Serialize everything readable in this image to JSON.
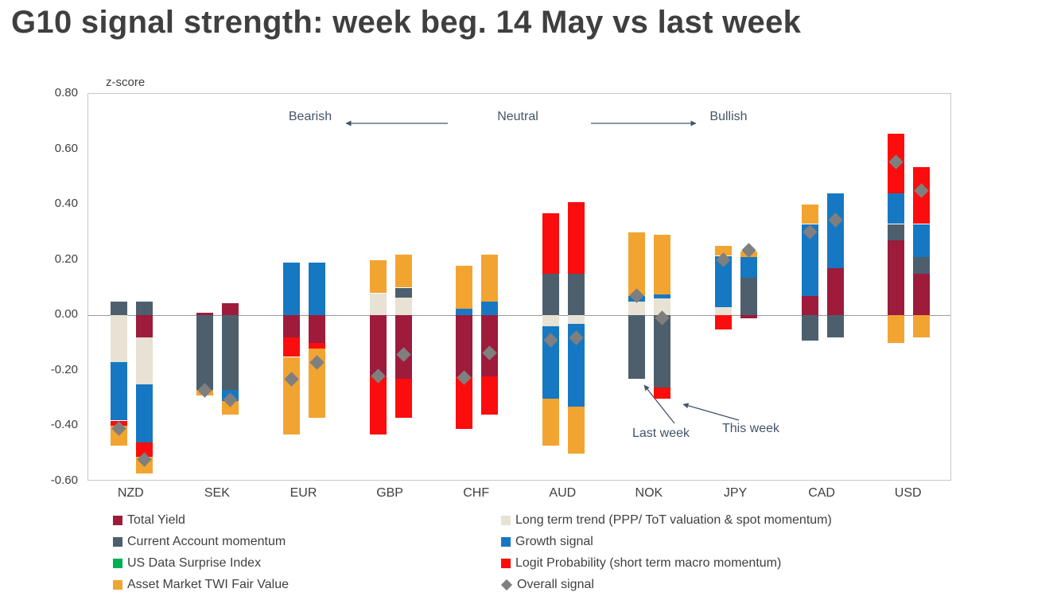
{
  "title": "G10 signal strength: week beg. 14 May vs last week",
  "colors": {
    "title_text": "#3F3F3F",
    "axis_text": "#404040",
    "annotation_text": "#44546A",
    "plot_border": "#C6C6C6",
    "zero_line": "#9A9A9A"
  },
  "chart_data": {
    "type": "bar",
    "stacked": true,
    "title": "G10 signal strength: week beg. 14 May vs last week",
    "ylabel": "z-score",
    "xlabel": "",
    "ylim": [
      -0.6,
      0.8
    ],
    "yticks": [
      "0.80",
      "0.60",
      "0.40",
      "0.20",
      "0.00",
      "-0.20",
      "-0.40",
      "-0.60"
    ],
    "grid": "off",
    "legend_position": "bottom-two-columns",
    "categories": [
      "NZD",
      "SEK",
      "EUR",
      "GBP",
      "CHF",
      "AUD",
      "NOK",
      "JPY",
      "CAD",
      "USD"
    ],
    "bar_pairs": [
      "last_week",
      "this_week"
    ],
    "components": {
      "total_yield": {
        "label": "Total Yield",
        "color": "#9E1B3B"
      },
      "long_term_trend": {
        "label": "Long term trend (PPP/ ToT valuation & spot momentum)",
        "color": "#E8E2D4"
      },
      "current_account": {
        "label": "Current Account momentum",
        "color": "#4D5F6D"
      },
      "growth": {
        "label": "Growth signal",
        "color": "#1678C2"
      },
      "us_surprise": {
        "label": "US Data Surprise Index",
        "color": "#00B050"
      },
      "logit": {
        "label": "Logit Probability (short term macro momentum)",
        "color": "#FB0D0D"
      },
      "twi": {
        "label": "Asset Market TWI Fair Value",
        "color": "#F2A431"
      },
      "overall": {
        "label": "Overall signal",
        "color": "#808080",
        "marker": "diamond"
      }
    },
    "legend_columns": [
      [
        "total_yield",
        "current_account",
        "us_surprise",
        "twi"
      ],
      [
        "long_term_trend",
        "growth",
        "logit",
        "overall"
      ]
    ],
    "groups": [
      {
        "currency": "NZD",
        "last_week": {
          "segments": [
            [
              "current_account",
              0.05
            ],
            [
              "long_term_trend",
              -0.17
            ],
            [
              "growth",
              -0.21
            ],
            [
              "logit",
              -0.02
            ],
            [
              "twi",
              -0.07
            ]
          ],
          "overall": -0.41
        },
        "this_week": {
          "segments": [
            [
              "current_account",
              0.05
            ],
            [
              "total_yield",
              -0.08
            ],
            [
              "long_term_trend",
              -0.17
            ],
            [
              "growth",
              -0.21
            ],
            [
              "logit",
              -0.05
            ],
            [
              "twi",
              -0.06
            ]
          ],
          "overall": -0.52
        }
      },
      {
        "currency": "SEK",
        "last_week": {
          "segments": [
            [
              "total_yield",
              0.01
            ],
            [
              "current_account",
              -0.27
            ],
            [
              "twi",
              -0.02
            ]
          ],
          "overall": -0.27
        },
        "this_week": {
          "segments": [
            [
              "total_yield",
              0.045
            ],
            [
              "current_account",
              -0.27
            ],
            [
              "growth",
              -0.04
            ],
            [
              "twi",
              -0.05
            ]
          ],
          "overall": -0.305
        }
      },
      {
        "currency": "EUR",
        "last_week": {
          "segments": [
            [
              "growth",
              0.19
            ],
            [
              "total_yield",
              -0.08
            ],
            [
              "logit",
              -0.07
            ],
            [
              "twi",
              -0.28
            ]
          ],
          "overall": -0.23
        },
        "this_week": {
          "segments": [
            [
              "growth",
              0.19
            ],
            [
              "total_yield",
              -0.1
            ],
            [
              "logit",
              -0.02
            ],
            [
              "twi",
              -0.25
            ]
          ],
          "overall": -0.17
        }
      },
      {
        "currency": "GBP",
        "last_week": {
          "segments": [
            [
              "long_term_trend",
              0.08
            ],
            [
              "twi",
              0.12
            ],
            [
              "total_yield",
              -0.22
            ],
            [
              "logit",
              -0.21
            ]
          ],
          "overall": -0.22
        },
        "this_week": {
          "segments": [
            [
              "long_term_trend",
              0.065
            ],
            [
              "current_account",
              0.035
            ],
            [
              "twi",
              0.12
            ],
            [
              "total_yield",
              -0.23
            ],
            [
              "logit",
              -0.14
            ]
          ],
          "overall": -0.14
        }
      },
      {
        "currency": "CHF",
        "last_week": {
          "segments": [
            [
              "growth",
              0.025
            ],
            [
              "twi",
              0.155
            ],
            [
              "total_yield",
              -0.22
            ],
            [
              "logit",
              -0.19
            ]
          ],
          "overall": -0.225
        },
        "this_week": {
          "segments": [
            [
              "growth",
              0.05
            ],
            [
              "twi",
              0.17
            ],
            [
              "total_yield",
              -0.22
            ],
            [
              "logit",
              -0.14
            ]
          ],
          "overall": -0.135
        }
      },
      {
        "currency": "AUD",
        "last_week": {
          "segments": [
            [
              "current_account",
              0.15
            ],
            [
              "logit",
              0.22
            ],
            [
              "long_term_trend",
              -0.04
            ],
            [
              "growth",
              -0.26
            ],
            [
              "twi",
              -0.17
            ]
          ],
          "overall": -0.09
        },
        "this_week": {
          "segments": [
            [
              "current_account",
              0.15
            ],
            [
              "logit",
              0.26
            ],
            [
              "long_term_trend",
              -0.03
            ],
            [
              "growth",
              -0.3
            ],
            [
              "twi",
              -0.17
            ]
          ],
          "overall": -0.08
        }
      },
      {
        "currency": "NOK",
        "last_week": {
          "segments": [
            [
              "long_term_trend",
              0.05
            ],
            [
              "growth",
              0.02
            ],
            [
              "twi",
              0.23
            ],
            [
              "current_account",
              -0.23
            ]
          ],
          "overall": 0.07
        },
        "this_week": {
          "segments": [
            [
              "long_term_trend",
              0.06
            ],
            [
              "growth",
              0.015
            ],
            [
              "twi",
              0.215
            ],
            [
              "current_account",
              -0.26
            ],
            [
              "logit",
              -0.04
            ]
          ],
          "overall": -0.01
        }
      },
      {
        "currency": "JPY",
        "last_week": {
          "segments": [
            [
              "long_term_trend",
              0.03
            ],
            [
              "growth",
              0.185
            ],
            [
              "twi",
              0.035
            ],
            [
              "logit",
              -0.05
            ]
          ],
          "overall": 0.2
        },
        "this_week": {
          "segments": [
            [
              "current_account",
              0.135
            ],
            [
              "growth",
              0.075
            ],
            [
              "twi",
              0.02
            ],
            [
              "total_yield",
              -0.01
            ]
          ],
          "overall": 0.235
        }
      },
      {
        "currency": "CAD",
        "last_week": {
          "segments": [
            [
              "total_yield",
              0.07
            ],
            [
              "growth",
              0.26
            ],
            [
              "twi",
              0.07
            ],
            [
              "current_account",
              -0.09
            ]
          ],
          "overall": 0.3
        },
        "this_week": {
          "segments": [
            [
              "total_yield",
              0.17
            ],
            [
              "growth",
              0.27
            ],
            [
              "current_account",
              -0.08
            ]
          ],
          "overall": 0.345
        }
      },
      {
        "currency": "USD",
        "last_week": {
          "segments": [
            [
              "total_yield",
              0.27
            ],
            [
              "current_account",
              0.06
            ],
            [
              "growth",
              0.11
            ],
            [
              "logit",
              0.215
            ],
            [
              "twi",
              -0.1
            ]
          ],
          "overall": 0.555
        },
        "this_week": {
          "segments": [
            [
              "total_yield",
              0.15
            ],
            [
              "current_account",
              0.06
            ],
            [
              "growth",
              0.12
            ],
            [
              "logit",
              0.205
            ],
            [
              "twi",
              -0.08
            ]
          ],
          "overall": 0.45
        }
      }
    ],
    "annotations": {
      "bearish": "Bearish",
      "neutral": "Neutral",
      "bullish": "Bullish",
      "last_week_label": "Last week",
      "this_week_label": "This week"
    }
  }
}
